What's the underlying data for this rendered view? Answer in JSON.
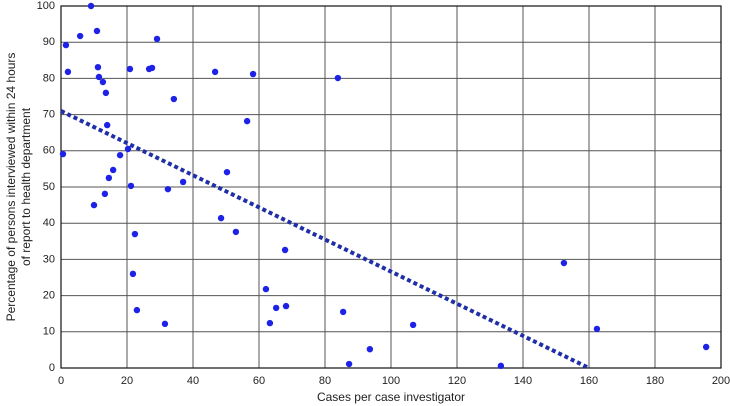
{
  "chart_data": {
    "type": "scatter",
    "xlabel": "Cases per case investigator",
    "ylabel": [
      "Percentage of persons interviewed within 24 hours",
      "of report to health department"
    ],
    "xlim": [
      0,
      200
    ],
    "ylim": [
      0,
      100
    ],
    "xticks": [
      0,
      20,
      40,
      60,
      80,
      100,
      120,
      140,
      160,
      180,
      200
    ],
    "yticks": [
      0,
      10,
      20,
      30,
      40,
      50,
      60,
      70,
      80,
      90,
      100
    ],
    "grid": true,
    "color": "#1d22e6",
    "x": [
      9.1,
      1.5,
      5.8,
      2.1,
      10.9,
      29.1,
      11.2,
      11.5,
      12.7,
      13.6,
      20.9,
      26.7,
      27.6,
      46.7,
      58.2,
      83.9,
      34.2,
      14,
      56.4,
      0.6,
      17.9,
      20.3,
      15.8,
      14.5,
      21.2,
      32.4,
      37,
      50.3,
      10,
      13.3,
      48.5,
      53,
      22.4,
      67.9,
      21.8,
      62.1,
      65.2,
      68.2,
      85.5,
      63.3,
      31.5,
      23,
      106.7,
      152.4,
      162.4,
      93.6,
      87.3,
      133.3,
      195.5
    ],
    "values": [
      100,
      89.2,
      91.7,
      81.8,
      93.1,
      90.9,
      83.1,
      80.4,
      79,
      76,
      82.6,
      82.6,
      82.9,
      81.8,
      81.2,
      80.1,
      74.3,
      67.1,
      68.2,
      59.1,
      58.8,
      60.5,
      54.7,
      52.5,
      50.3,
      49.4,
      51.4,
      54.1,
      45,
      48.1,
      41.4,
      37.6,
      37,
      32.6,
      26,
      21.8,
      16.6,
      17.1,
      15.5,
      12.4,
      12.2,
      16,
      11.9,
      29,
      10.8,
      5.2,
      1.1,
      0.6,
      5.8
    ],
    "trend_line": {
      "x": [
        0,
        160
      ],
      "y": [
        71,
        0
      ],
      "color": "#1f2fa8"
    }
  }
}
